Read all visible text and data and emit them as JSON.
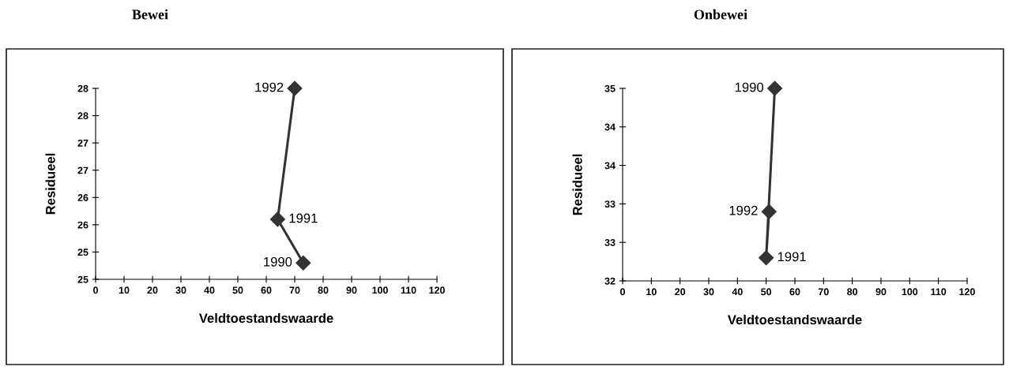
{
  "chart_data": [
    {
      "type": "line",
      "title": "Bewei",
      "xlabel": "Veldtoestandswaarde",
      "ylabel": "Residueel",
      "marker": "diamond",
      "series": [
        {
          "color": "#333333",
          "x": [
            73,
            64,
            70
          ],
          "values": [
            24.8,
            25.6,
            28.0
          ]
        }
      ],
      "xlim": [
        0,
        120
      ],
      "xticks": [
        0,
        10,
        20,
        30,
        40,
        50,
        60,
        70,
        80,
        90,
        100,
        110,
        120
      ],
      "ylim": [
        24.5,
        28
      ],
      "yticks": [
        {
          "value": 24.5,
          "label": "25"
        },
        {
          "value": 25,
          "label": "25"
        },
        {
          "value": 25.5,
          "label": "26"
        },
        {
          "value": 26,
          "label": "26"
        },
        {
          "value": 26.5,
          "label": "27"
        },
        {
          "value": 27,
          "label": "27"
        },
        {
          "value": 27.5,
          "label": "28"
        },
        {
          "value": 28,
          "label": "28"
        }
      ],
      "annotations": [
        {
          "text": "1990",
          "x": 73,
          "y": 24.8
        },
        {
          "text": "1991",
          "x": 64,
          "y": 25.6
        },
        {
          "text": "1992",
          "x": 70,
          "y": 28.0
        }
      ]
    },
    {
      "type": "line",
      "title": "Onbewei",
      "xlabel": "Veldtoestandswaarde",
      "ylabel": "Residueel",
      "marker": "diamond",
      "series": [
        {
          "color": "#333333",
          "x": [
            53,
            50,
            51
          ],
          "values": [
            34.5,
            32.3,
            32.9
          ]
        }
      ],
      "xlim": [
        0,
        120
      ],
      "xticks": [
        0,
        10,
        20,
        30,
        40,
        50,
        60,
        70,
        80,
        90,
        100,
        110,
        120
      ],
      "ylim": [
        32,
        34.5
      ],
      "yticks": [
        {
          "value": 32,
          "label": "32"
        },
        {
          "value": 32.5,
          "label": "33"
        },
        {
          "value": 33,
          "label": "33"
        },
        {
          "value": 33.5,
          "label": "34"
        },
        {
          "value": 34,
          "label": "34"
        },
        {
          "value": 34.5,
          "label": "35"
        }
      ],
      "annotations": [
        {
          "text": "1990",
          "x": 53,
          "y": 34.5
        },
        {
          "text": "1991",
          "x": 50,
          "y": 32.3
        },
        {
          "text": "1992",
          "x": 51,
          "y": 32.9
        }
      ]
    }
  ]
}
